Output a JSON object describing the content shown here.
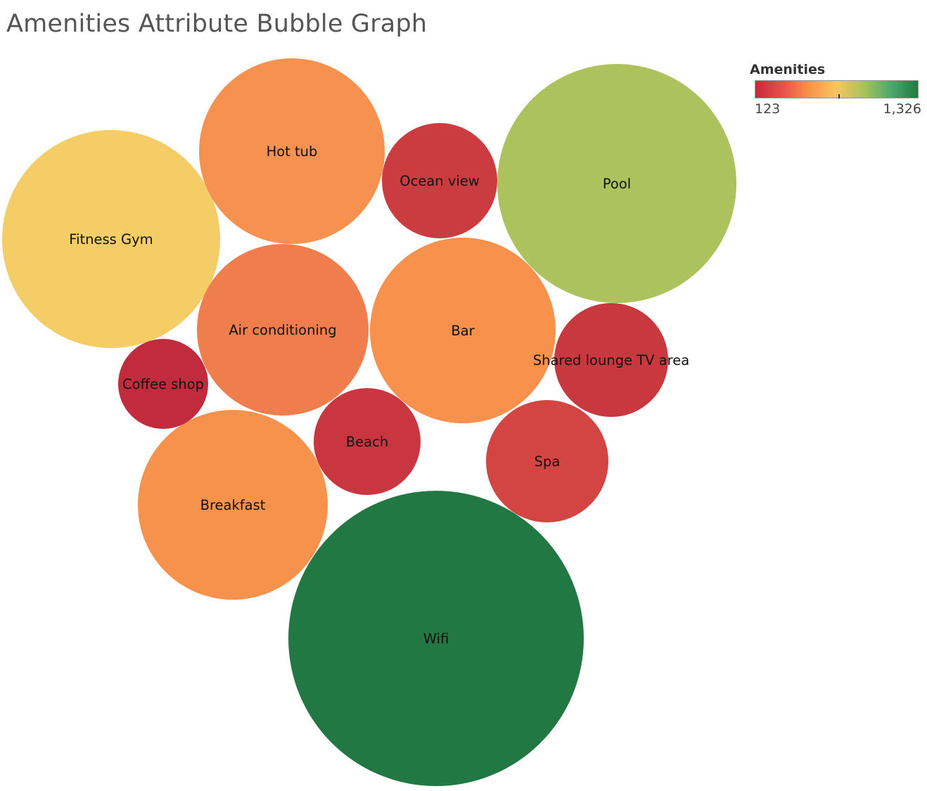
{
  "chart_data": {
    "type": "bubble",
    "title": "Amenities Attribute Bubble Graph",
    "color_legend": {
      "title": "Amenities",
      "min_label": "123",
      "max_label": "1,326",
      "min": 123,
      "max": 1326,
      "stops": [
        "#c52a3a",
        "#e8504a",
        "#f7944b",
        "#f7c661",
        "#a8c35d",
        "#4ca96b",
        "#217a42"
      ]
    },
    "points": [
      {
        "label": "Wifi",
        "value": 1326,
        "color": "#217842"
      },
      {
        "label": "Pool",
        "value": 855,
        "color": "#abc25d"
      },
      {
        "label": "Fitness Gym",
        "value": 705,
        "color": "#f4cd66"
      },
      {
        "label": "Hot tub",
        "value": 510,
        "color": "#f79150"
      },
      {
        "label": "Bar",
        "value": 510,
        "color": "#f7914c"
      },
      {
        "label": "Breakfast",
        "value": 530,
        "color": "#f7924c"
      },
      {
        "label": "Air conditioning",
        "value": 440,
        "color": "#f07d4c"
      },
      {
        "label": "Ocean view",
        "value": 195,
        "color": "#cb3c41"
      },
      {
        "label": "Shared lounge TV area",
        "value": 190,
        "color": "#c9373f"
      },
      {
        "label": "Spa",
        "value": 220,
        "color": "#d34542"
      },
      {
        "label": "Beach",
        "value": 165,
        "color": "#c9363f"
      },
      {
        "label": "Coffee shop",
        "value": 123,
        "color": "#c22b3e"
      }
    ]
  }
}
